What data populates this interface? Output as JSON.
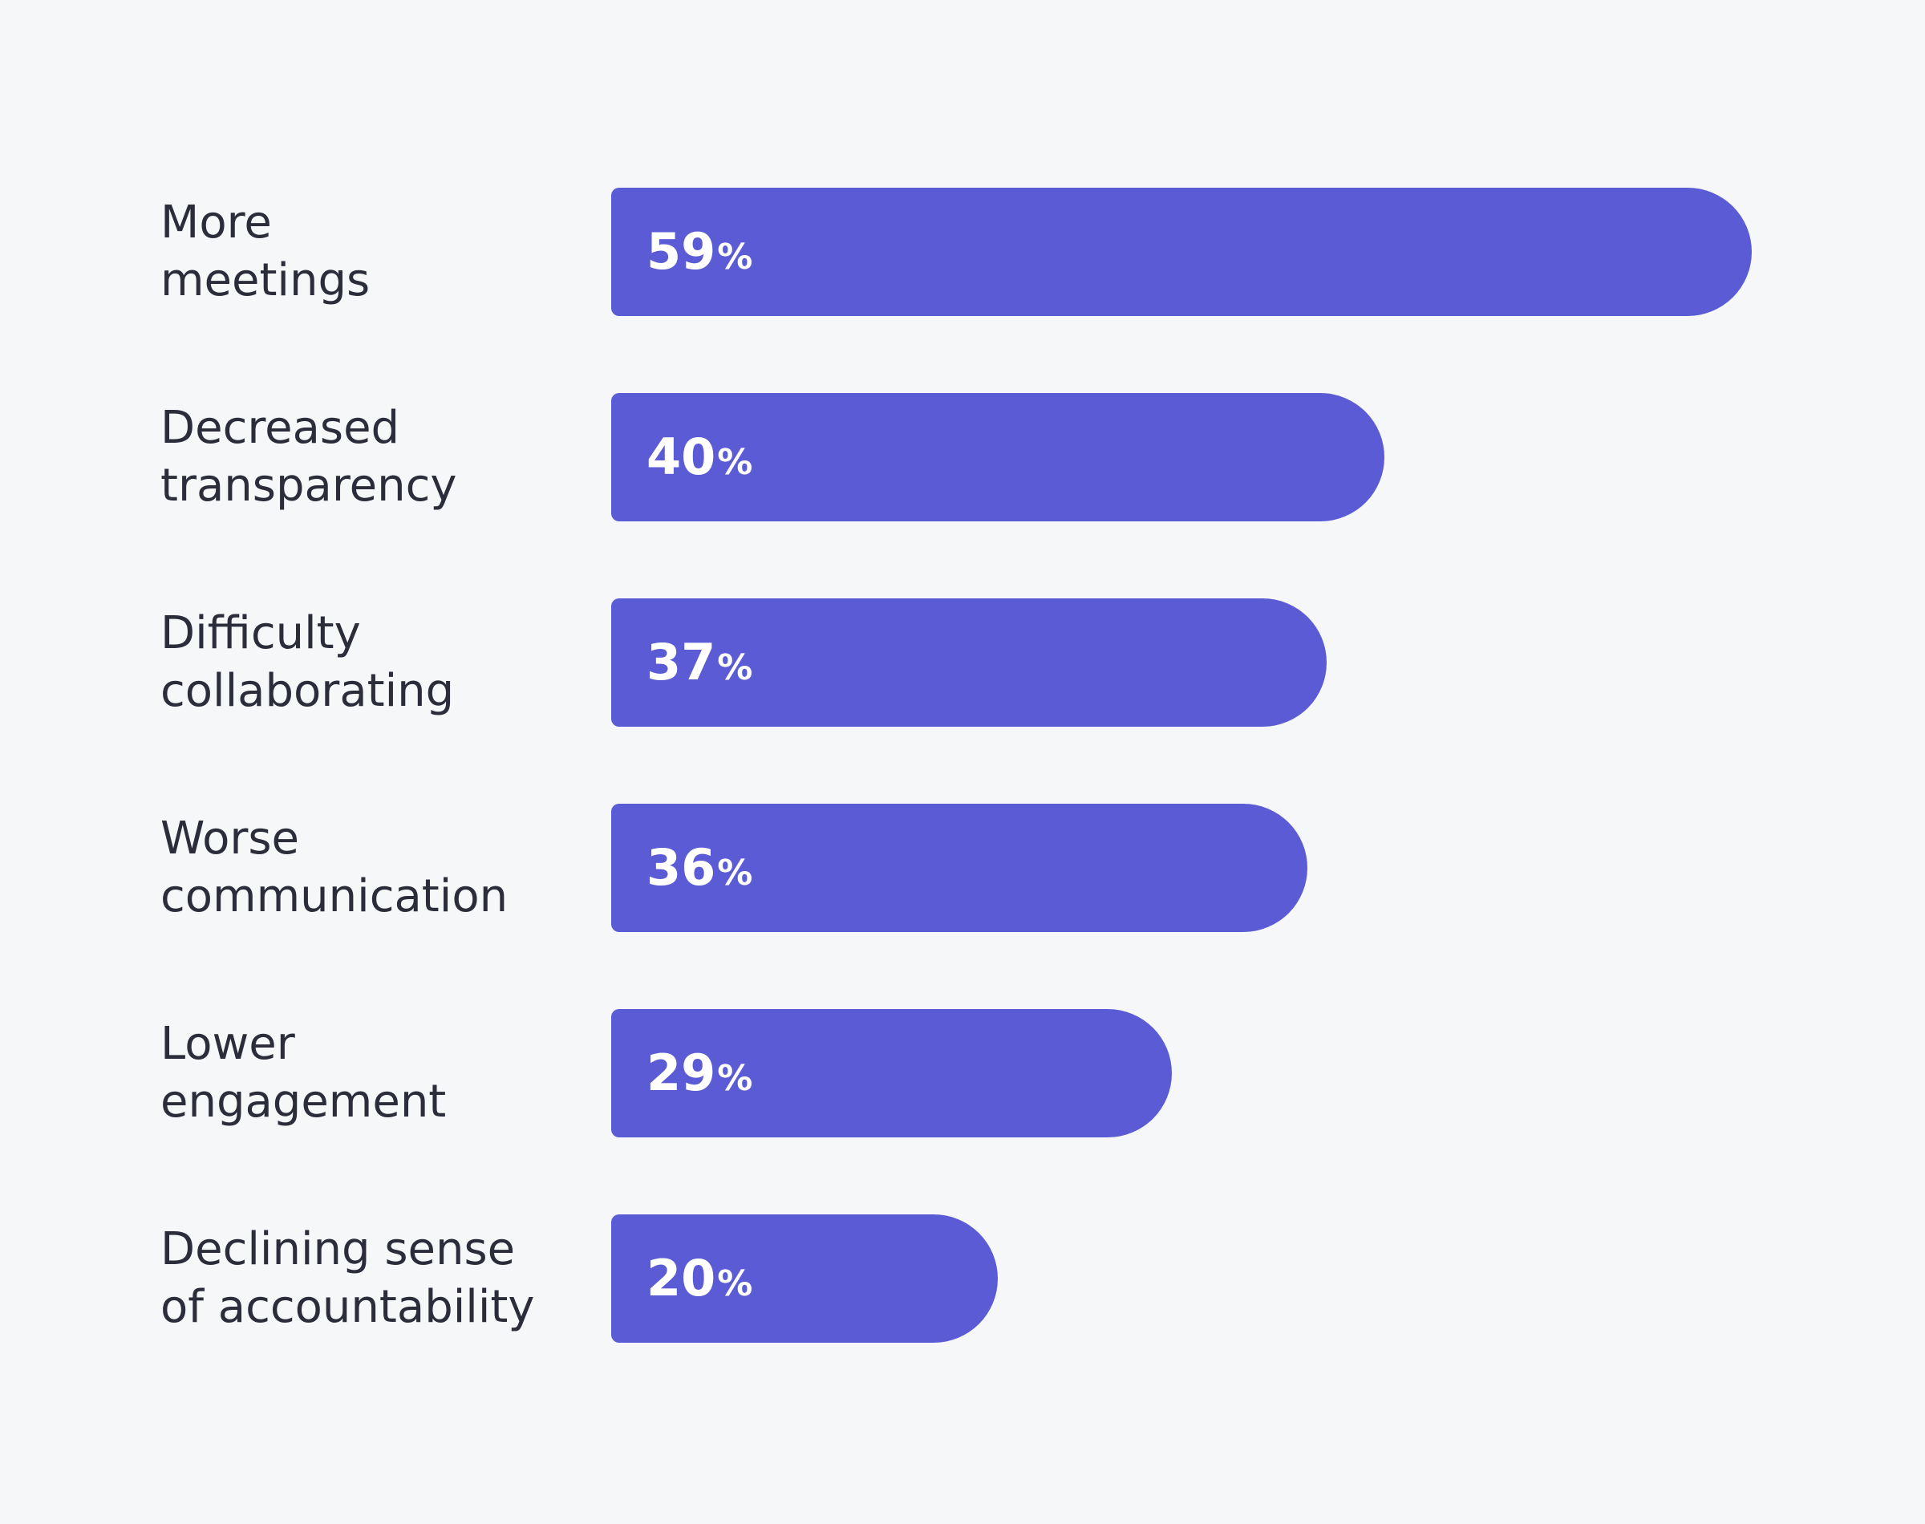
{
  "chart_data": {
    "type": "bar",
    "orientation": "horizontal",
    "categories": [
      "More meetings",
      "Decreased transparency",
      "Difficulty collaborating",
      "Worse communication",
      "Lower engagement",
      "Declining sense of accountability"
    ],
    "category_lines": [
      [
        "More",
        "meetings"
      ],
      [
        "Decreased",
        "transparency"
      ],
      [
        "Difficulty",
        "collaborating"
      ],
      [
        "Worse",
        "communication"
      ],
      [
        "Lower",
        "engagement"
      ],
      [
        "Declining sense",
        "of accountability"
      ]
    ],
    "values": [
      59,
      40,
      37,
      36,
      29,
      20
    ],
    "value_suffix": "%",
    "title": "",
    "xlabel": "",
    "ylabel": "",
    "xlim": [
      0,
      59
    ],
    "grid": false,
    "legend": "none",
    "bar_color": "#5b5bd6",
    "label_color": "#ffffff",
    "background": "#f6f7f9",
    "text_color": "#2b2d3a"
  }
}
